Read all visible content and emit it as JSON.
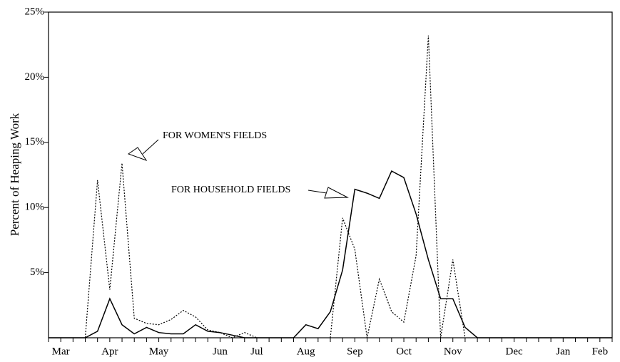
{
  "chart_data": {
    "type": "line",
    "y_label": "Percent of Heaping Work",
    "categories": [
      null,
      "Mar",
      null,
      null,
      null,
      "Apr",
      null,
      null,
      null,
      "May",
      null,
      null,
      null,
      null,
      "Jun",
      null,
      null,
      "Jul",
      null,
      null,
      null,
      "Aug",
      null,
      null,
      null,
      "Sep",
      null,
      null,
      null,
      "Oct",
      null,
      null,
      null,
      "Nov",
      null,
      null,
      null,
      null,
      "Dec",
      null,
      null,
      null,
      "Jan",
      null,
      null,
      "Feb",
      null
    ],
    "series": [
      {
        "name": "FOR HOUSEHOLD FIELDS",
        "color": "#000000",
        "style": "solid",
        "values": [
          0,
          0,
          0,
          0,
          0.5,
          3.0,
          1.0,
          0.3,
          0.8,
          0.4,
          0.3,
          0.3,
          1.0,
          0.5,
          0.4,
          0.2,
          0,
          0,
          0,
          0,
          0,
          1.0,
          0.7,
          2.0,
          5.2,
          11.4,
          11.1,
          10.7,
          12.8,
          12.3,
          9.5,
          6.0,
          3.0,
          3.0,
          0.8,
          0,
          0,
          0,
          0,
          0,
          0,
          0,
          0,
          0,
          0,
          0,
          0
        ]
      },
      {
        "name": "FOR WOMEN'S FIELDS",
        "color": "#000000",
        "style": "dotted",
        "values": [
          null,
          null,
          null,
          0,
          12.1,
          3.7,
          13.4,
          1.5,
          1.1,
          1.0,
          1.4,
          2.1,
          1.6,
          0.6,
          0.4,
          0,
          0.4,
          0,
          null,
          null,
          null,
          null,
          null,
          0,
          9.2,
          6.8,
          0,
          4.5,
          2.0,
          1.2,
          6.3,
          23.2,
          0,
          6.0,
          0,
          null,
          null,
          null,
          null,
          null,
          null,
          null,
          null,
          null,
          null,
          null,
          null
        ]
      }
    ],
    "ylim": [
      0,
      25
    ],
    "yticks": [
      {
        "value": 5,
        "label": "5%"
      },
      {
        "value": 10,
        "label": "10%"
      },
      {
        "value": 15,
        "label": "15%"
      },
      {
        "value": 20,
        "label": "20%"
      },
      {
        "value": 25,
        "label": "25%"
      }
    ]
  }
}
